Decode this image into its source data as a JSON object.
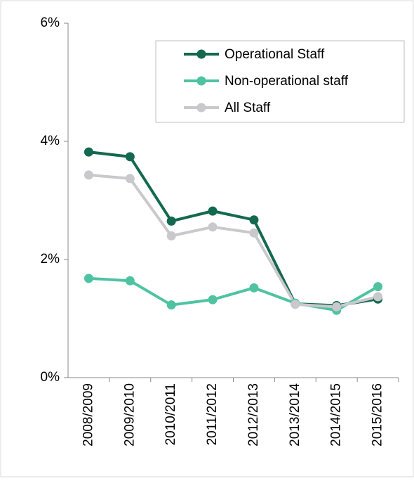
{
  "chart_data": {
    "type": "line",
    "categories": [
      "2008/2009",
      "2009/2010",
      "2010/2011",
      "2011/2012",
      "2012/2013",
      "2013/2014",
      "2014/2015",
      "2015/2016"
    ],
    "series": [
      {
        "name": "Operational Staff",
        "color": "#13694f",
        "values": [
          3.82,
          3.74,
          2.65,
          2.82,
          2.67,
          1.25,
          1.22,
          1.33
        ]
      },
      {
        "name": "Non-operational staff",
        "color": "#4fc3a1",
        "values": [
          1.68,
          1.64,
          1.23,
          1.32,
          1.52,
          1.26,
          1.14,
          1.54
        ]
      },
      {
        "name": "All Staff",
        "color": "#c9c9cd",
        "values": [
          3.43,
          3.37,
          2.4,
          2.55,
          2.45,
          1.24,
          1.2,
          1.37
        ]
      }
    ],
    "ylim": [
      0,
      6
    ],
    "yticks": [
      {
        "value": 0,
        "label": "0%"
      },
      {
        "value": 2,
        "label": "2%"
      },
      {
        "value": 4,
        "label": "4%"
      },
      {
        "value": 6,
        "label": "6%"
      }
    ],
    "grid": false,
    "legend": "upper right"
  }
}
